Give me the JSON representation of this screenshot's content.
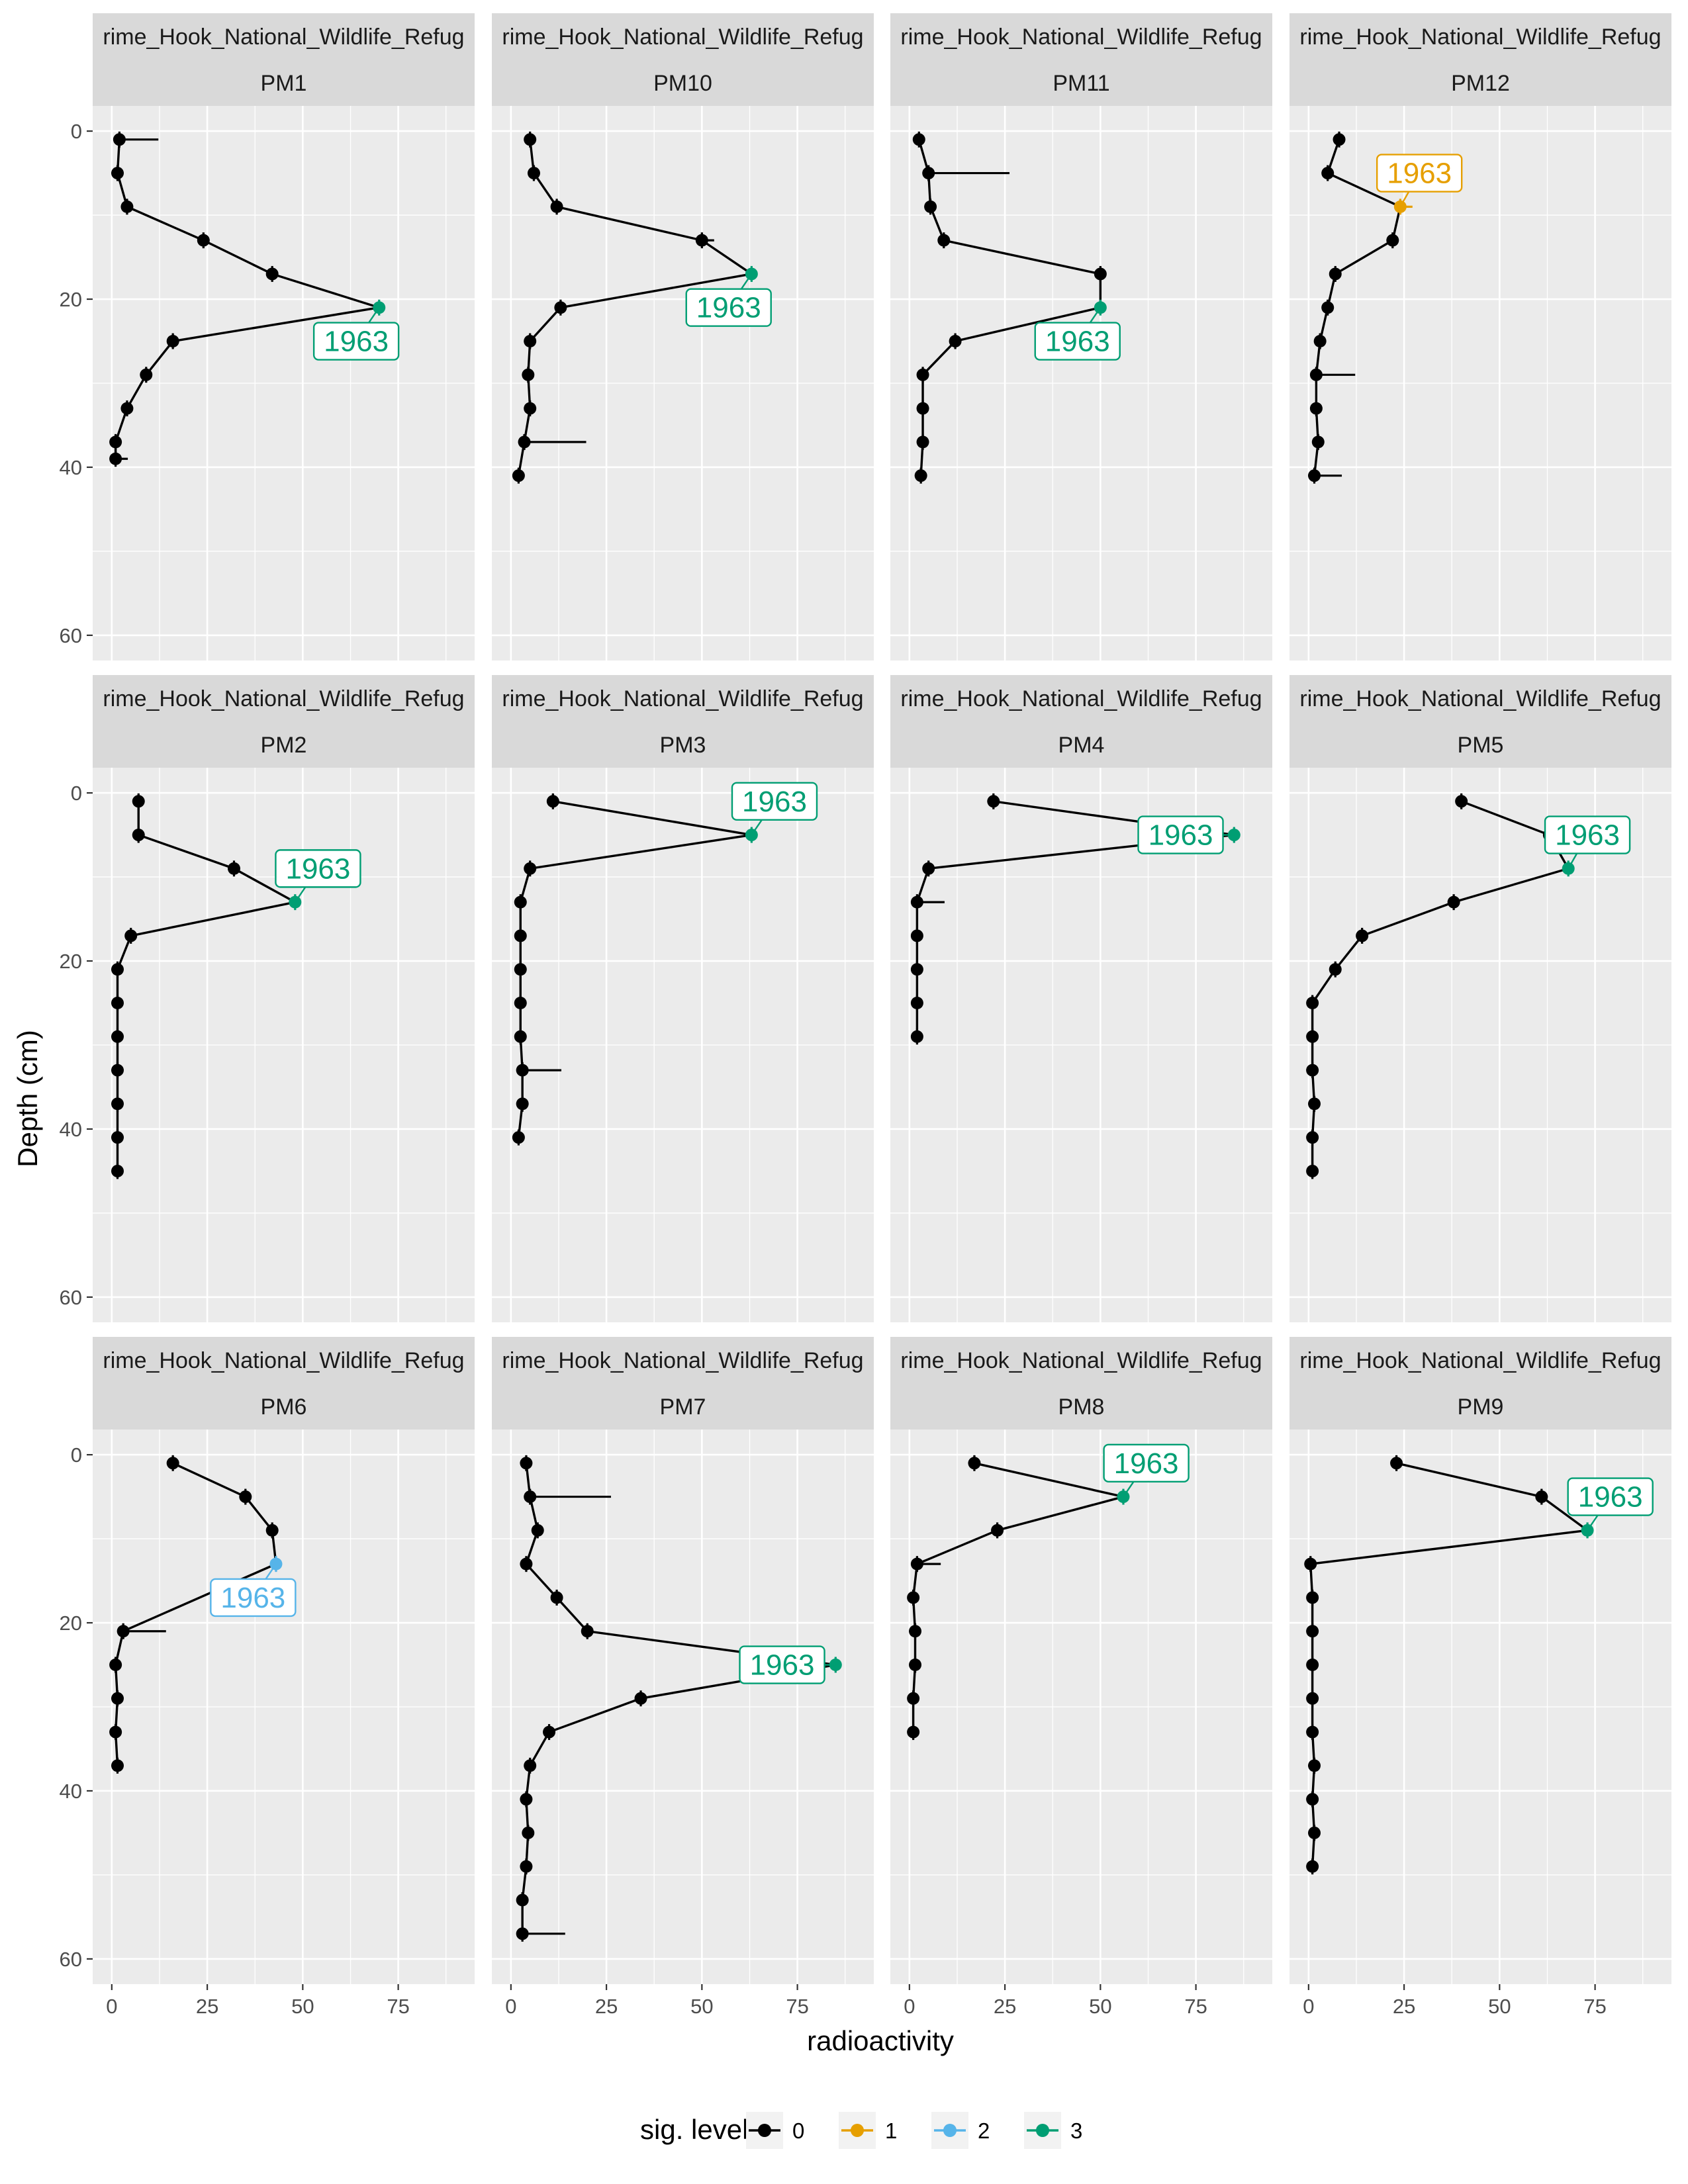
{
  "chart_data": {
    "type": "line",
    "xlabel": "radioactivity",
    "ylabel": "Depth (cm)",
    "xlim": [
      -5,
      95
    ],
    "ylim": [
      0,
      60
    ],
    "y_reversed": true,
    "x_ticks": [
      0,
      25,
      50,
      75
    ],
    "y_ticks": [
      0,
      20,
      40,
      60
    ],
    "grid": true,
    "legend": {
      "title": "sig. level",
      "position": "bottom",
      "entries": [
        {
          "label": "0",
          "color": "#000000"
        },
        {
          "label": "1",
          "color": "#E69F00"
        },
        {
          "label": "2",
          "color": "#56B4E9"
        },
        {
          "label": "3",
          "color": "#009E73"
        }
      ]
    },
    "label_text": "1963",
    "panels": [
      {
        "site": "rime_Hook_National_Wildlife_Refug",
        "core": "PM1",
        "points": [
          [
            2,
            1,
            0,
            9
          ],
          [
            1.5,
            5,
            0,
            0
          ],
          [
            4,
            9,
            0,
            0
          ],
          [
            24,
            13,
            0,
            0
          ],
          [
            42,
            17,
            0,
            0
          ],
          [
            70,
            21,
            3,
            0
          ],
          [
            16,
            25,
            0,
            0
          ],
          [
            9,
            29,
            0,
            0
          ],
          [
            4,
            33,
            0,
            0
          ],
          [
            1,
            37,
            0,
            0
          ],
          [
            1,
            39,
            0,
            2
          ]
        ],
        "label": {
          "x": 70,
          "y": 21,
          "lx": 64,
          "ly": 25,
          "sig": 3
        }
      },
      {
        "site": "rime_Hook_National_Wildlife_Refug",
        "core": "PM10",
        "points": [
          [
            5,
            1,
            0,
            0
          ],
          [
            6,
            5,
            0,
            0
          ],
          [
            12,
            9,
            0,
            0
          ],
          [
            50,
            13,
            0,
            2
          ],
          [
            63,
            17,
            3,
            0
          ],
          [
            13,
            21,
            0,
            0
          ],
          [
            5,
            25,
            0,
            0
          ],
          [
            4.5,
            29,
            0,
            0
          ],
          [
            5,
            33,
            0,
            0
          ],
          [
            3.5,
            37,
            0,
            15
          ],
          [
            2,
            41,
            0,
            0
          ]
        ],
        "label": {
          "x": 63,
          "y": 17,
          "lx": 57,
          "ly": 21,
          "sig": 3
        }
      },
      {
        "site": "rime_Hook_National_Wildlife_Refug",
        "core": "PM11",
        "points": [
          [
            2.5,
            1,
            0,
            0
          ],
          [
            5,
            5,
            0,
            20
          ],
          [
            5.5,
            9,
            0,
            0
          ],
          [
            9,
            13,
            0,
            0
          ],
          [
            50,
            17,
            0,
            0
          ],
          [
            50,
            21,
            3,
            0
          ],
          [
            12,
            25,
            0,
            0
          ],
          [
            3.5,
            29,
            0,
            0
          ],
          [
            3.5,
            33,
            0,
            0
          ],
          [
            3.5,
            37,
            0,
            0
          ],
          [
            3,
            41,
            0,
            0
          ]
        ],
        "label": {
          "x": 50,
          "y": 21,
          "lx": 44,
          "ly": 25,
          "sig": 3
        }
      },
      {
        "site": "rime_Hook_National_Wildlife_Refug",
        "core": "PM12",
        "points": [
          [
            8,
            1,
            0,
            0
          ],
          [
            5,
            5,
            0,
            0
          ],
          [
            24,
            9,
            1,
            2
          ],
          [
            22,
            13,
            0,
            0
          ],
          [
            7,
            17,
            0,
            0
          ],
          [
            5,
            21,
            0,
            0
          ],
          [
            3,
            25,
            0,
            0
          ],
          [
            2,
            29,
            0,
            9
          ],
          [
            2,
            33,
            0,
            0
          ],
          [
            2.5,
            37,
            0,
            0
          ],
          [
            1.5,
            41,
            0,
            6
          ]
        ],
        "label": {
          "x": 24,
          "y": 9,
          "lx": 29,
          "ly": 5,
          "sig": 1
        }
      },
      {
        "site": "rime_Hook_National_Wildlife_Refug",
        "core": "PM2",
        "points": [
          [
            7,
            1,
            0,
            0
          ],
          [
            7,
            5,
            0,
            0
          ],
          [
            32,
            9,
            0,
            0
          ],
          [
            48,
            13,
            3,
            0
          ],
          [
            5,
            17,
            0,
            0
          ],
          [
            1.5,
            21,
            0,
            0
          ],
          [
            1.5,
            25,
            0,
            0
          ],
          [
            1.5,
            29,
            0,
            0
          ],
          [
            1.5,
            33,
            0,
            0
          ],
          [
            1.5,
            37,
            0,
            0
          ],
          [
            1.5,
            41,
            0,
            0
          ],
          [
            1.5,
            45,
            0,
            0
          ]
        ],
        "label": {
          "x": 48,
          "y": 13,
          "lx": 54,
          "ly": 9,
          "sig": 3
        }
      },
      {
        "site": "rime_Hook_National_Wildlife_Refug",
        "core": "PM3",
        "points": [
          [
            11,
            1,
            0,
            0
          ],
          [
            63,
            5,
            3,
            0
          ],
          [
            5,
            9,
            0,
            0
          ],
          [
            2.5,
            13,
            0,
            0
          ],
          [
            2.5,
            17,
            0,
            0
          ],
          [
            2.5,
            21,
            0,
            0
          ],
          [
            2.5,
            25,
            0,
            0
          ],
          [
            2.5,
            29,
            0,
            0
          ],
          [
            3,
            33,
            0,
            9
          ],
          [
            3,
            37,
            0,
            0
          ],
          [
            2,
            41,
            0,
            0
          ]
        ],
        "label": {
          "x": 63,
          "y": 5,
          "lx": 69,
          "ly": 1,
          "sig": 3
        }
      },
      {
        "site": "rime_Hook_National_Wildlife_Refug",
        "core": "PM4",
        "points": [
          [
            22,
            1,
            0,
            0
          ],
          [
            85,
            5,
            3,
            0
          ],
          [
            5,
            9,
            0,
            0
          ],
          [
            2,
            13,
            0,
            6
          ],
          [
            2,
            17,
            0,
            0
          ],
          [
            2,
            21,
            0,
            0
          ],
          [
            2,
            25,
            0,
            0
          ],
          [
            2,
            29,
            0,
            0
          ]
        ],
        "label": {
          "x": 85,
          "y": 5,
          "lx": 71,
          "ly": 5,
          "sig": 3
        }
      },
      {
        "site": "rime_Hook_National_Wildlife_Refug",
        "core": "PM5",
        "points": [
          [
            40,
            1,
            0,
            0
          ],
          [
            63,
            5,
            0,
            0
          ],
          [
            68,
            9,
            3,
            0
          ],
          [
            38,
            13,
            0,
            0
          ],
          [
            14,
            17,
            0,
            0
          ],
          [
            7,
            21,
            0,
            0
          ],
          [
            1,
            25,
            0,
            0
          ],
          [
            1,
            29,
            0,
            0
          ],
          [
            1,
            33,
            0,
            0
          ],
          [
            1.5,
            37,
            0,
            0
          ],
          [
            1,
            41,
            0,
            0
          ],
          [
            1,
            45,
            0,
            0
          ]
        ],
        "label": {
          "x": 68,
          "y": 9,
          "lx": 73,
          "ly": 5,
          "sig": 3
        }
      },
      {
        "site": "rime_Hook_National_Wildlife_Refug",
        "core": "PM6",
        "points": [
          [
            16,
            1,
            0,
            0
          ],
          [
            35,
            5,
            0,
            0
          ],
          [
            42,
            9,
            0,
            0
          ],
          [
            43,
            13,
            2,
            0
          ],
          [
            3,
            21,
            0,
            10
          ],
          [
            1,
            25,
            0,
            0
          ],
          [
            1.5,
            29,
            0,
            0
          ],
          [
            1,
            33,
            0,
            0
          ],
          [
            1.5,
            37,
            0,
            0
          ]
        ],
        "label": {
          "x": 43,
          "y": 13,
          "lx": 37,
          "ly": 17,
          "sig": 2
        }
      },
      {
        "site": "rime_Hook_National_Wildlife_Refug",
        "core": "PM7",
        "points": [
          [
            4,
            1,
            0,
            0
          ],
          [
            5,
            5,
            0,
            20
          ],
          [
            7,
            9,
            0,
            0
          ],
          [
            4,
            13,
            0,
            0
          ],
          [
            12,
            17,
            0,
            0
          ],
          [
            20,
            21,
            0,
            0
          ],
          [
            85,
            25,
            3,
            0
          ],
          [
            34,
            29,
            0,
            0
          ],
          [
            10,
            33,
            0,
            0
          ],
          [
            5,
            37,
            0,
            0
          ],
          [
            4,
            41,
            0,
            0
          ],
          [
            4.5,
            45,
            0,
            0
          ],
          [
            4,
            49,
            0,
            0
          ],
          [
            3,
            53,
            0,
            0
          ],
          [
            3,
            57,
            0,
            10
          ]
        ],
        "label": {
          "x": 85,
          "y": 25,
          "lx": 71,
          "ly": 25,
          "sig": 3
        }
      },
      {
        "site": "rime_Hook_National_Wildlife_Refug",
        "core": "PM8",
        "points": [
          [
            17,
            1,
            0,
            0
          ],
          [
            56,
            5,
            3,
            0
          ],
          [
            23,
            9,
            0,
            0
          ],
          [
            2,
            13,
            0,
            5
          ],
          [
            1,
            17,
            0,
            0
          ],
          [
            1.5,
            21,
            0,
            0
          ],
          [
            1.5,
            25,
            0,
            0
          ],
          [
            1,
            29,
            0,
            0
          ],
          [
            1,
            33,
            0,
            0
          ]
        ],
        "label": {
          "x": 56,
          "y": 5,
          "lx": 62,
          "ly": 1,
          "sig": 3
        }
      },
      {
        "site": "rime_Hook_National_Wildlife_Refug",
        "core": "PM9",
        "points": [
          [
            23,
            1,
            0,
            0
          ],
          [
            61,
            5,
            0,
            0
          ],
          [
            73,
            9,
            3,
            0
          ],
          [
            0.5,
            13,
            0,
            0
          ],
          [
            1,
            17,
            0,
            0
          ],
          [
            1,
            21,
            0,
            0
          ],
          [
            1,
            25,
            0,
            0
          ],
          [
            1,
            29,
            0,
            0
          ],
          [
            1,
            33,
            0,
            0
          ],
          [
            1.5,
            37,
            0,
            0
          ],
          [
            1,
            41,
            0,
            0
          ],
          [
            1.5,
            45,
            0,
            0
          ],
          [
            1,
            49,
            0,
            0
          ]
        ],
        "label": {
          "x": 73,
          "y": 9,
          "lx": 79,
          "ly": 5,
          "sig": 3
        }
      }
    ]
  }
}
